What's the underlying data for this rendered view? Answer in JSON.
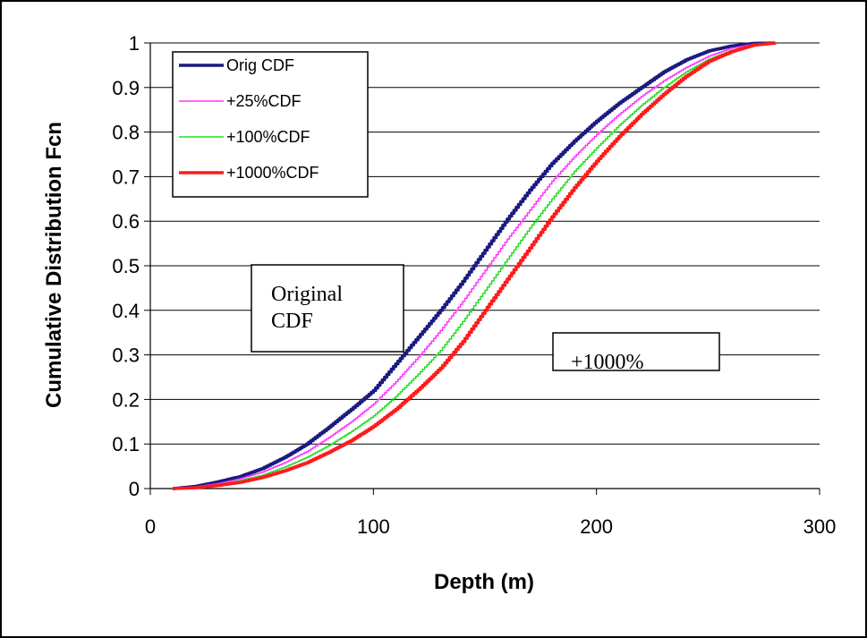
{
  "chart_data": {
    "type": "line",
    "title": "",
    "xlabel": "Depth (m)",
    "ylabel": "Cumulative Distribution Fcn",
    "xlim": [
      0,
      300
    ],
    "ylim": [
      0,
      1
    ],
    "x_ticks": [
      0,
      100,
      200,
      300
    ],
    "y_ticks": [
      0,
      0.1,
      0.2,
      0.3,
      0.4,
      0.5,
      0.6,
      0.7,
      0.8,
      0.9,
      1
    ],
    "grid": "horizontal",
    "legend_position": "top-left",
    "series": [
      {
        "name": "Orig CDF",
        "color": "#1a1a80",
        "x": [
          10,
          20,
          30,
          40,
          50,
          60,
          70,
          80,
          90,
          100,
          110,
          120,
          130,
          140,
          150,
          160,
          170,
          180,
          190,
          200,
          210,
          220,
          230,
          240,
          250,
          260,
          270,
          280
        ],
        "y": [
          0.0,
          0.005,
          0.015,
          0.027,
          0.045,
          0.07,
          0.1,
          0.138,
          0.178,
          0.22,
          0.28,
          0.34,
          0.4,
          0.465,
          0.535,
          0.605,
          0.67,
          0.73,
          0.78,
          0.825,
          0.865,
          0.9,
          0.935,
          0.962,
          0.982,
          0.993,
          0.999,
          1.0
        ]
      },
      {
        "name": "+25%CDF",
        "color": "#ff33ff",
        "x": [
          10,
          20,
          30,
          40,
          50,
          60,
          70,
          80,
          90,
          100,
          110,
          120,
          130,
          140,
          150,
          160,
          170,
          180,
          190,
          200,
          210,
          220,
          230,
          240,
          250,
          260,
          270,
          280
        ],
        "y": [
          0.0,
          0.004,
          0.011,
          0.022,
          0.037,
          0.058,
          0.083,
          0.115,
          0.15,
          0.19,
          0.24,
          0.295,
          0.355,
          0.42,
          0.49,
          0.56,
          0.625,
          0.69,
          0.745,
          0.795,
          0.84,
          0.88,
          0.915,
          0.945,
          0.97,
          0.988,
          0.997,
          1.0
        ]
      },
      {
        "name": "+100%CDF",
        "color": "#22dd22",
        "x": [
          10,
          20,
          30,
          40,
          50,
          60,
          70,
          80,
          90,
          100,
          110,
          120,
          130,
          140,
          150,
          160,
          170,
          180,
          190,
          200,
          210,
          220,
          230,
          240,
          250,
          260,
          270,
          280
        ],
        "y": [
          0.0,
          0.003,
          0.009,
          0.018,
          0.03,
          0.048,
          0.07,
          0.097,
          0.128,
          0.163,
          0.207,
          0.257,
          0.31,
          0.375,
          0.445,
          0.515,
          0.585,
          0.65,
          0.712,
          0.765,
          0.815,
          0.86,
          0.9,
          0.935,
          0.963,
          0.983,
          0.996,
          1.0
        ]
      },
      {
        "name": "+1000%CDF",
        "color": "#ff1a1a",
        "x": [
          10,
          20,
          30,
          40,
          50,
          60,
          70,
          80,
          90,
          100,
          110,
          120,
          130,
          140,
          150,
          160,
          170,
          180,
          190,
          200,
          210,
          220,
          230,
          240,
          250,
          260,
          270,
          280
        ],
        "y": [
          0.0,
          0.002,
          0.007,
          0.014,
          0.025,
          0.04,
          0.058,
          0.082,
          0.108,
          0.14,
          0.178,
          0.222,
          0.27,
          0.33,
          0.4,
          0.47,
          0.54,
          0.61,
          0.675,
          0.735,
          0.79,
          0.84,
          0.885,
          0.925,
          0.958,
          0.98,
          0.995,
          1.0
        ]
      }
    ],
    "annotations": [
      {
        "text": "Original\nCDF"
      },
      {
        "text": "+1000%"
      }
    ]
  }
}
